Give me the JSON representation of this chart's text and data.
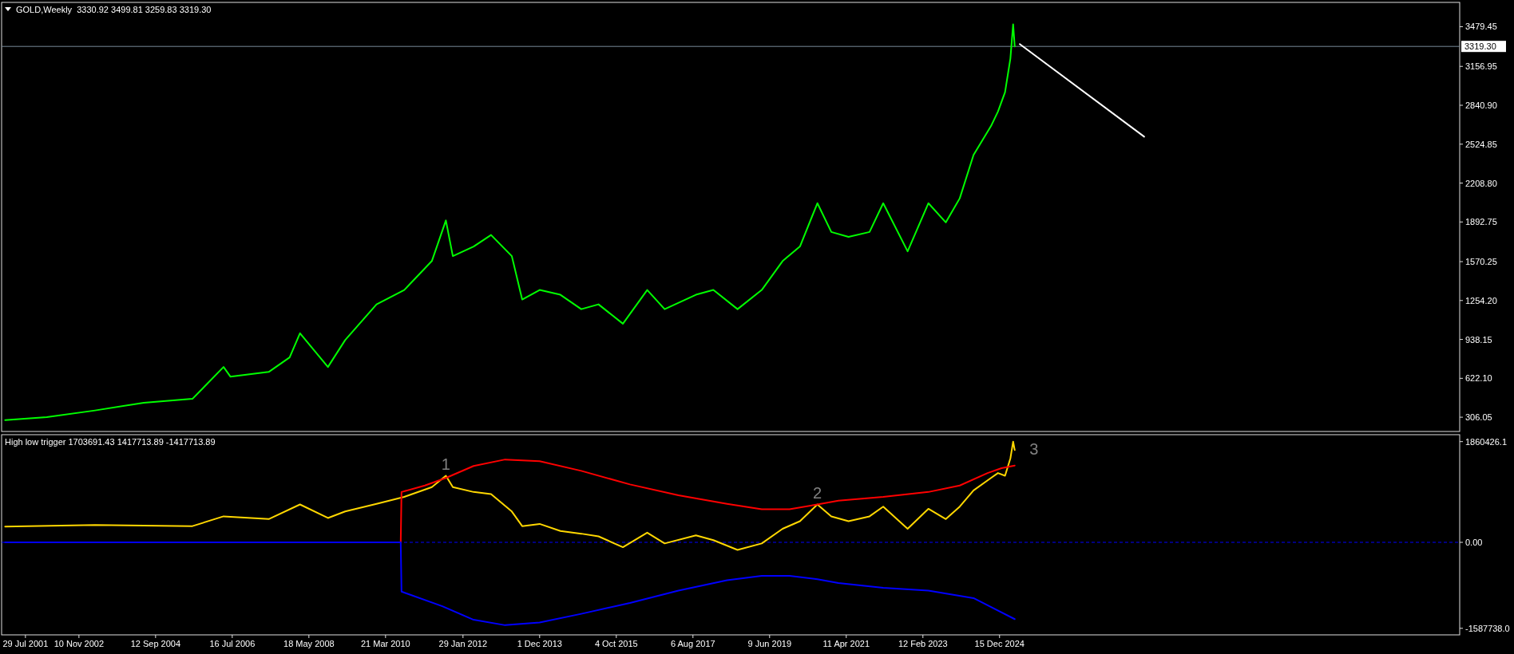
{
  "chart_data": [
    {
      "type": "line",
      "title": "GOLD,Weekly  3330.92 3499.81 3259.83 3319.30",
      "xlim": [
        "2001-01-01",
        "2036-01-01"
      ],
      "ylim": [
        190,
        3677
      ],
      "yticks": [
        {
          "value": 306.05,
          "label": "306.05"
        },
        {
          "value": 622.1,
          "label": "622.10"
        },
        {
          "value": 938.15,
          "label": "938.15"
        },
        {
          "value": 1254.2,
          "label": "1254.20"
        },
        {
          "value": 1570.25,
          "label": "1570.25"
        },
        {
          "value": 1892.75,
          "label": "1892.75"
        },
        {
          "value": 2208.8,
          "label": "2208.80"
        },
        {
          "value": 2524.85,
          "label": "2524.85"
        },
        {
          "value": 2840.9,
          "label": "2840.90"
        },
        {
          "value": 3156.95,
          "label": "3156.95"
        },
        {
          "value": 3479.45,
          "label": "3479.45"
        }
      ],
      "tick_labels": "y",
      "ref_lines": [
        {
          "axis": "y",
          "value": 3319.3,
          "label": "3319.30",
          "color": "#778899"
        }
      ],
      "series": [
        {
          "color": "#00ff00",
          "x": [
            "2001-02",
            "2002-02",
            "2003-04",
            "2004-06",
            "2005-08",
            "2006-05",
            "2006-07",
            "2007-06",
            "2007-12",
            "2008-03",
            "2008-11",
            "2009-04",
            "2010-01",
            "2010-09",
            "2011-05",
            "2011-09",
            "2011-11",
            "2012-05",
            "2012-10",
            "2013-04",
            "2013-07",
            "2013-12",
            "2014-06",
            "2014-12",
            "2015-05",
            "2015-12",
            "2016-07",
            "2016-12",
            "2017-09",
            "2018-02",
            "2018-09",
            "2019-04",
            "2019-10",
            "2020-03",
            "2020-08",
            "2020-12",
            "2021-05",
            "2021-11",
            "2022-03",
            "2022-10",
            "2023-04",
            "2023-09",
            "2024-01",
            "2024-05",
            "2024-10",
            "2024-12",
            "2025-02",
            "2025-03-20",
            "2025-04-13",
            "2025-04-27"
          ],
          "values": [
            283,
            306,
            361,
            424,
            455,
            714,
            635,
            674,
            792,
            988,
            714,
            933,
            1223,
            1340,
            1575,
            1905,
            1615,
            1693,
            1787,
            1615,
            1262,
            1340,
            1301,
            1184,
            1223,
            1066,
            1340,
            1184,
            1301,
            1340,
            1184,
            1340,
            1575,
            1693,
            2045,
            1811,
            1771,
            1811,
            2045,
            1654,
            2045,
            1889,
            2085,
            2437,
            2672,
            2790,
            2947,
            3221,
            3499,
            3319
          ]
        },
        {
          "color": "#ffffff",
          "x": [
            "2025-06-10",
            "2028-06-05"
          ],
          "values": [
            3338,
            2586
          ]
        }
      ]
    },
    {
      "type": "line",
      "title": "High low trigger 1703691.43 1417713.89 -1417713.89",
      "xlim": [
        "2001-01-01",
        "2036-01-01"
      ],
      "ylim": [
        -1708700,
        1988550
      ],
      "xticks": [
        {
          "value": "2001-07-29",
          "label": "29 Jul 2001"
        },
        {
          "value": "2002-11-10",
          "label": "10 Nov 2002"
        },
        {
          "value": "2004-09-12",
          "label": "12 Sep 2004"
        },
        {
          "value": "2006-07-16",
          "label": "16 Jul 2006"
        },
        {
          "value": "2008-05-18",
          "label": "18 May 2008"
        },
        {
          "value": "2010-03-21",
          "label": "21 Mar 2010"
        },
        {
          "value": "2012-01-29",
          "label": "29 Jan 2012"
        },
        {
          "value": "2013-12-01",
          "label": "1 Dec 2013"
        },
        {
          "value": "2015-10-04",
          "label": "4 Oct 2015"
        },
        {
          "value": "2017-08-06",
          "label": "6 Aug 2017"
        },
        {
          "value": "2019-06-09",
          "label": "9 Jun 2019"
        },
        {
          "value": "2021-04-11",
          "label": "11 Apr 2021"
        },
        {
          "value": "2023-02-12",
          "label": "12 Feb 2023"
        },
        {
          "value": "2024-12-15",
          "label": "15 Dec 2024"
        }
      ],
      "yticks": [
        {
          "value": 1860426.1,
          "label": "1860426.1"
        },
        {
          "value": 0,
          "label": "0.00"
        },
        {
          "value": -1587738,
          "label": "-1587738.0"
        }
      ],
      "ref_lines": [
        {
          "axis": "y",
          "value": 0,
          "color": "#0000ff",
          "line_style": "dashed"
        }
      ],
      "annotations": [
        {
          "text": "1",
          "x": "2011-09",
          "y": 1229000
        },
        {
          "text": "2",
          "x": "2020-08",
          "y": 695000
        },
        {
          "text": "3",
          "x": "2025-04-13",
          "y": 1860000
        }
      ],
      "series": [
        {
          "color": "#ffd700",
          "x": [
            "2001-02",
            "2003-04",
            "2005-08",
            "2006-05",
            "2007-06",
            "2008-03",
            "2008-11",
            "2009-04",
            "2010-01",
            "2010-09",
            "2011-05",
            "2011-09",
            "2011-11",
            "2012-05",
            "2012-10",
            "2013-04",
            "2013-07",
            "2013-12",
            "2014-06",
            "2014-12",
            "2015-05",
            "2015-12",
            "2016-07",
            "2016-12",
            "2017-09",
            "2018-02",
            "2018-09",
            "2019-04",
            "2019-10",
            "2020-03",
            "2020-08",
            "2020-12",
            "2021-05",
            "2021-11",
            "2022-03",
            "2022-10",
            "2023-04",
            "2023-09",
            "2024-01",
            "2024-05",
            "2024-10",
            "2024-12",
            "2025-02",
            "2025-03-20",
            "2025-04-13",
            "2025-04-27"
          ],
          "values": [
            290000,
            320000,
            300000,
            480000,
            430000,
            700000,
            450000,
            570000,
            710000,
            840000,
            1020000,
            1230000,
            1020000,
            930000,
            890000,
            570000,
            300000,
            340000,
            210000,
            160000,
            110000,
            -90000,
            180000,
            -20000,
            130000,
            40000,
            -140000,
            -20000,
            250000,
            390000,
            700000,
            480000,
            390000,
            480000,
            660000,
            250000,
            620000,
            430000,
            660000,
            960000,
            1190000,
            1280000,
            1230000,
            1550000,
            1860000,
            1703691.43
          ]
        },
        {
          "color": "#ff0000",
          "x": [
            "2010-08-01",
            "2010-08-08",
            "2011-03",
            "2011-09",
            "2012-05",
            "2013-02",
            "2013-12",
            "2014-12",
            "2016-02",
            "2017-04",
            "2018-06",
            "2019-04",
            "2019-12",
            "2020-08",
            "2021-02",
            "2022-03",
            "2023-04",
            "2024-01",
            "2024-09",
            "2025-01",
            "2025-04-27"
          ],
          "values": [
            0,
            930000,
            1050000,
            1190000,
            1410000,
            1530000,
            1500000,
            1320000,
            1070000,
            870000,
            710000,
            610000,
            610000,
            700000,
            770000,
            840000,
            930000,
            1050000,
            1280000,
            1370000,
            1417713.89
          ]
        },
        {
          "color": "#0000ff",
          "x": [
            "2001-02",
            "2010-08-01",
            "2010-08-08",
            "2011-08",
            "2012-05",
            "2013-02",
            "2013-12",
            "2014-12",
            "2016-02",
            "2017-04",
            "2018-06",
            "2019-04",
            "2019-12",
            "2020-08",
            "2021-02",
            "2022-03",
            "2023-04",
            "2024-05",
            "2025-04-27"
          ],
          "values": [
            0,
            0,
            -910000,
            -1180000,
            -1430000,
            -1530000,
            -1480000,
            -1320000,
            -1120000,
            -890000,
            -700000,
            -620000,
            -620000,
            -680000,
            -750000,
            -840000,
            -890000,
            -1030000,
            -1417713.89
          ]
        }
      ]
    }
  ]
}
